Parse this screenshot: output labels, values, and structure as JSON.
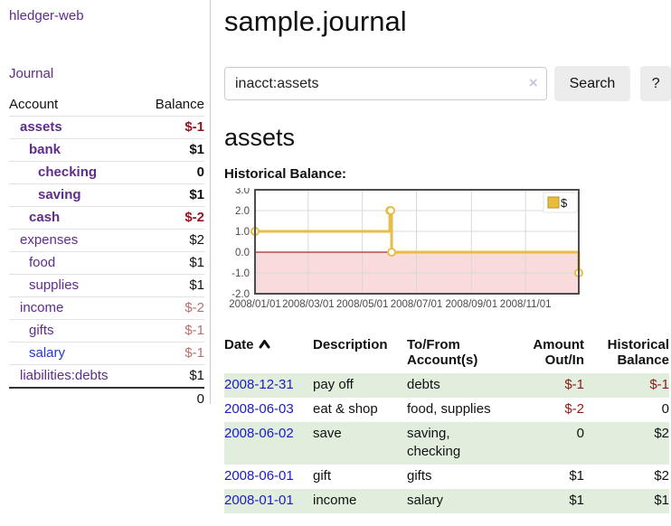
{
  "app": {
    "title": "hledger-web"
  },
  "sidebar": {
    "journal_link": "Journal",
    "accounts_table": {
      "headers": {
        "account": "Account",
        "balance": "Balance"
      },
      "accounts": [
        {
          "name": "assets",
          "balance": "$-1",
          "indent": 1,
          "bold": true,
          "balance_style": "neg-strong",
          "link_style": "purple"
        },
        {
          "name": "bank",
          "balance": "$1",
          "indent": 2,
          "bold": true,
          "balance_style": "normal",
          "link_style": "purple"
        },
        {
          "name": "checking",
          "balance": "0",
          "indent": 3,
          "bold": true,
          "balance_style": "normal",
          "link_style": "purple"
        },
        {
          "name": "saving",
          "balance": "$1",
          "indent": 3,
          "bold": true,
          "balance_style": "normal",
          "link_style": "purple"
        },
        {
          "name": "cash",
          "balance": "$-2",
          "indent": 2,
          "bold": true,
          "balance_style": "neg-strong",
          "link_style": "purple"
        },
        {
          "name": "expenses",
          "balance": "$2",
          "indent": 1,
          "bold": false,
          "balance_style": "normal",
          "link_style": "purple"
        },
        {
          "name": "food",
          "balance": "$1",
          "indent": 2,
          "bold": false,
          "balance_style": "normal",
          "link_style": "purple"
        },
        {
          "name": "supplies",
          "balance": "$1",
          "indent": 2,
          "bold": false,
          "balance_style": "normal",
          "link_style": "purple"
        },
        {
          "name": "income",
          "balance": "$-2",
          "indent": 1,
          "bold": false,
          "balance_style": "neg-soft",
          "link_style": "purple"
        },
        {
          "name": "gifts",
          "balance": "$-1",
          "indent": 2,
          "bold": false,
          "balance_style": "neg-soft",
          "link_style": "purple"
        },
        {
          "name": "salary",
          "balance": "$-1",
          "indent": 2,
          "bold": false,
          "balance_style": "neg-soft",
          "link_style": "blue"
        },
        {
          "name": "liabilities:debts",
          "balance": "$1",
          "indent": 1,
          "bold": false,
          "balance_style": "normal",
          "link_style": "purple"
        }
      ],
      "total": "0"
    }
  },
  "header": {
    "title": "sample.journal"
  },
  "search": {
    "value": "inacct:assets",
    "clear_icon": "×",
    "button_label": "Search",
    "help_label": "?"
  },
  "account_page": {
    "title": "assets",
    "chart_label": "Historical Balance:"
  },
  "chart_data": {
    "type": "line",
    "style": "step-after",
    "title": "Historical Balance",
    "series": [
      {
        "name": "$",
        "points": [
          [
            "2008-01-01",
            1
          ],
          [
            "2008-06-01",
            2
          ],
          [
            "2008-06-02",
            2
          ],
          [
            "2008-06-03",
            0
          ],
          [
            "2008-12-31",
            -1
          ]
        ]
      }
    ],
    "x_ticks": [
      "2008/01/01",
      "2008/03/01",
      "2008/05/01",
      "2008/07/01",
      "2008/09/01",
      "2008/11/01"
    ],
    "y_ticks": [
      3.0,
      2.0,
      1.0,
      0.0,
      -1.0,
      -2.0
    ],
    "ylim": [
      -2,
      3
    ],
    "xlim": [
      "2008-01-01",
      "2008-12-31"
    ],
    "grid": true,
    "legend": {
      "label": "$",
      "position": "top-right"
    },
    "colors": {
      "line": "#e6be46",
      "marker_fill": "#ffffff",
      "negative_fill": "#fadbdb",
      "zero_line": "#8b0000",
      "grid": "#d8d8d8",
      "border": "#4d4d4d",
      "legend_swatch": "#e8bd3c",
      "legend_swatch_border": "#b8912a"
    }
  },
  "register": {
    "headers": {
      "date": "Date",
      "description": "Description",
      "accounts": "To/From Account(s)",
      "amount": "Amount Out/In",
      "balance": "Historical Balance"
    },
    "rows": [
      {
        "date": "2008-12-31",
        "description": "pay off",
        "accounts": "debts",
        "amount": "$-1",
        "amount_neg": true,
        "balance": "$-1",
        "balance_neg": true
      },
      {
        "date": "2008-06-03",
        "description": "eat & shop",
        "accounts": "food, supplies",
        "amount": "$-2",
        "amount_neg": true,
        "balance": "0",
        "balance_neg": false
      },
      {
        "date": "2008-06-02",
        "description": "save",
        "accounts": "saving, checking",
        "amount": "0",
        "amount_neg": false,
        "balance": "$2",
        "balance_neg": false
      },
      {
        "date": "2008-06-01",
        "description": "gift",
        "accounts": "gifts",
        "amount": "$1",
        "amount_neg": false,
        "balance": "$2",
        "balance_neg": false
      },
      {
        "date": "2008-01-01",
        "description": "income",
        "accounts": "salary",
        "amount": "$1",
        "amount_neg": false,
        "balance": "$1",
        "balance_neg": false
      }
    ]
  }
}
